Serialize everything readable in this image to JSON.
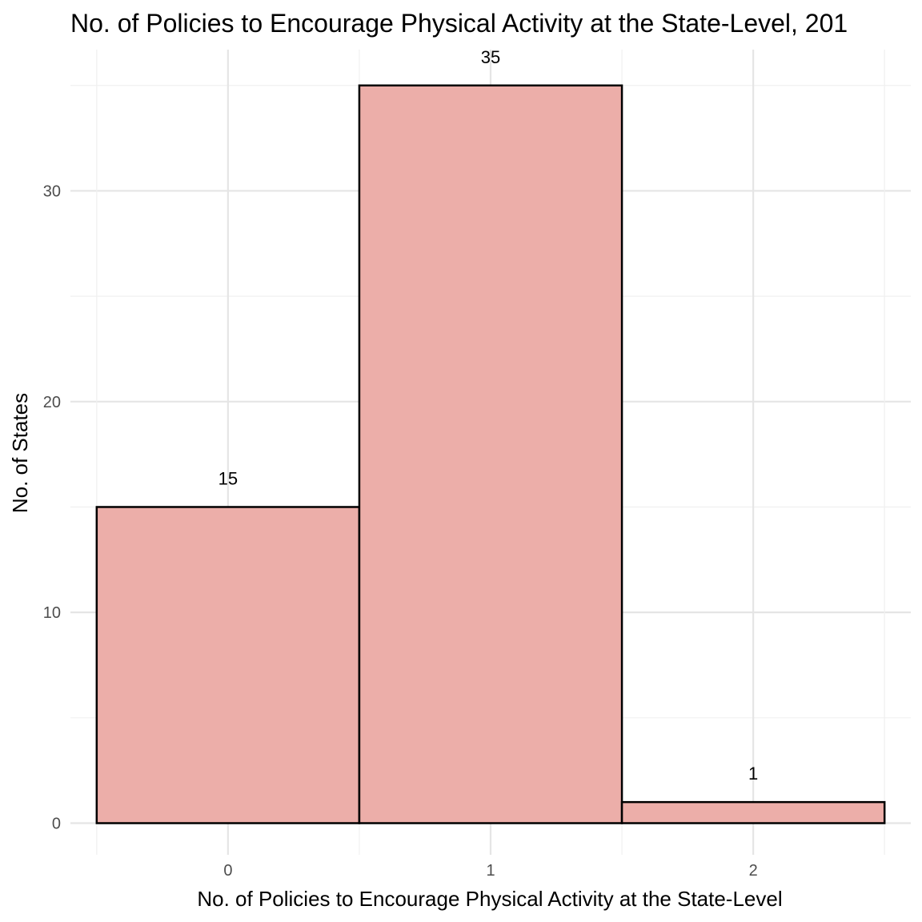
{
  "chart_data": {
    "type": "bar",
    "title": "No. of Policies to Encourage Physical Activity at the State-Level, 201",
    "xlabel": "No. of Policies to Encourage Physical Activity at the State-Level",
    "ylabel": "No. of States",
    "categories": [
      "0",
      "1",
      "2"
    ],
    "x": [
      0,
      1,
      2
    ],
    "values": [
      15,
      35,
      1
    ],
    "data_labels": [
      "15",
      "35",
      "1"
    ],
    "xlim": [
      -0.6,
      2.6
    ],
    "ylim": [
      -1.5,
      36.7
    ],
    "y_ticks": [
      0,
      10,
      20,
      30
    ],
    "y_tick_labels": [
      "0",
      "10",
      "20",
      "30"
    ],
    "grid": true,
    "legend": "none",
    "colors": {
      "bar_fill": "#ecaea9",
      "bar_stroke": "#000000",
      "grid_major": "#e5e5e5",
      "grid_minor": "#f0f0f0"
    }
  }
}
